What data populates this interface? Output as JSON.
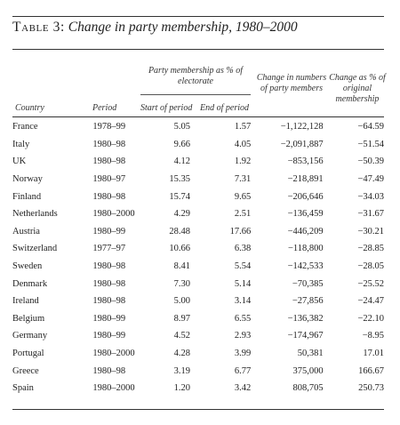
{
  "table": {
    "title_prefix": "Table 3:",
    "title_text": "Change in party membership, 1980–2000",
    "group_header": "Party membership as % of electorate",
    "headers": {
      "country": "Country",
      "period": "Period",
      "start": "Start of period",
      "end": "End of period",
      "change": "Change in numbers of party members",
      "pct": "Change as % of original membership"
    },
    "rows": [
      {
        "country": "France",
        "period": "1978–99",
        "start": "5.05",
        "end": "1.57",
        "change": "−1,122,128",
        "pct": "−64.59"
      },
      {
        "country": "Italy",
        "period": "1980–98",
        "start": "9.66",
        "end": "4.05",
        "change": "−2,091,887",
        "pct": "−51.54"
      },
      {
        "country": "UK",
        "period": "1980–98",
        "start": "4.12",
        "end": "1.92",
        "change": "−853,156",
        "pct": "−50.39"
      },
      {
        "country": "Norway",
        "period": "1980–97",
        "start": "15.35",
        "end": "7.31",
        "change": "−218,891",
        "pct": "−47.49"
      },
      {
        "country": "Finland",
        "period": "1980–98",
        "start": "15.74",
        "end": "9.65",
        "change": "−206,646",
        "pct": "−34.03"
      },
      {
        "country": "Netherlands",
        "period": "1980–2000",
        "start": "4.29",
        "end": "2.51",
        "change": "−136,459",
        "pct": "−31.67"
      },
      {
        "country": "Austria",
        "period": "1980–99",
        "start": "28.48",
        "end": "17.66",
        "change": "−446,209",
        "pct": "−30.21"
      },
      {
        "country": "Switzerland",
        "period": "1977–97",
        "start": "10.66",
        "end": "6.38",
        "change": "−118,800",
        "pct": "−28.85"
      },
      {
        "country": "Sweden",
        "period": "1980–98",
        "start": "8.41",
        "end": "5.54",
        "change": "−142,533",
        "pct": "−28.05"
      },
      {
        "country": "Denmark",
        "period": "1980–98",
        "start": "7.30",
        "end": "5.14",
        "change": "−70,385",
        "pct": "−25.52"
      },
      {
        "country": "Ireland",
        "period": "1980–98",
        "start": "5.00",
        "end": "3.14",
        "change": "−27,856",
        "pct": "−24.47"
      },
      {
        "country": "Belgium",
        "period": "1980–99",
        "start": "8.97",
        "end": "6.55",
        "change": "−136,382",
        "pct": "−22.10"
      },
      {
        "country": "Germany",
        "period": "1980–99",
        "start": "4.52",
        "end": "2.93",
        "change": "−174,967",
        "pct": "−8.95"
      },
      {
        "country": "Portugal",
        "period": "1980–2000",
        "start": "4.28",
        "end": "3.99",
        "change": "50,381",
        "pct": "17.01"
      },
      {
        "country": "Greece",
        "period": "1980–98",
        "start": "3.19",
        "end": "6.77",
        "change": "375,000",
        "pct": "166.67"
      },
      {
        "country": "Spain",
        "period": "1980–2000",
        "start": "1.20",
        "end": "3.42",
        "change": "808,705",
        "pct": "250.73"
      }
    ]
  }
}
